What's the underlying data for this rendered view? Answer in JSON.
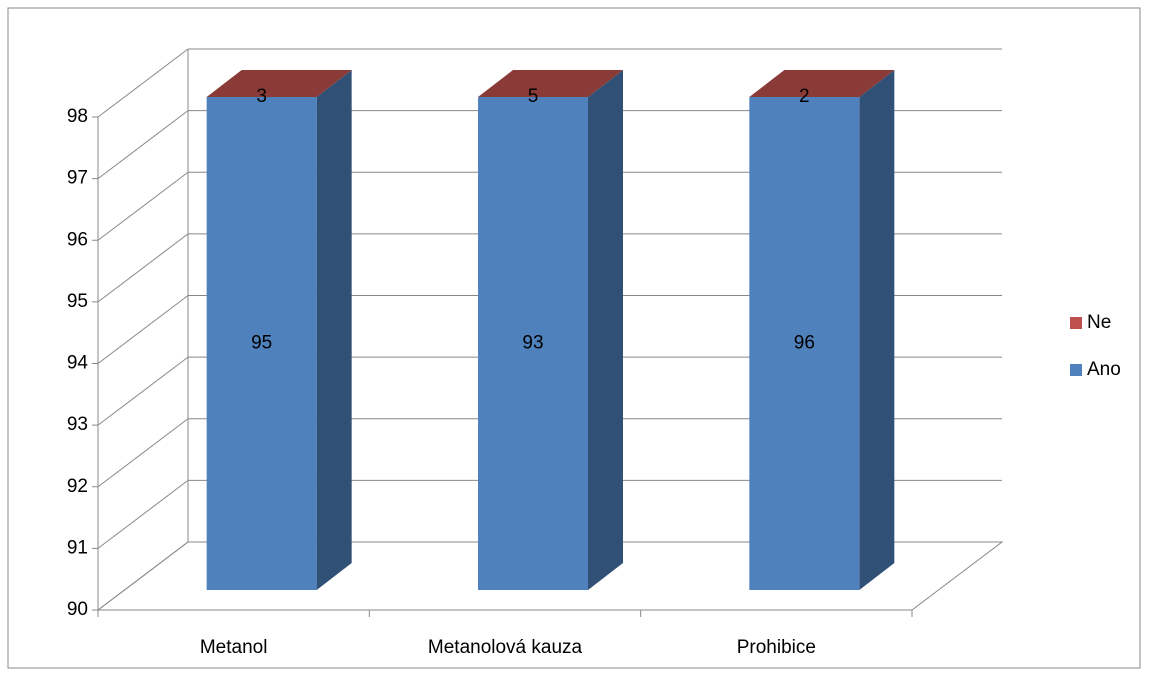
{
  "chart_data": {
    "type": "bar3d_stacked",
    "categories": [
      "Metanol",
      "Metanolová kauza",
      "Prohibice"
    ],
    "series": [
      {
        "name": "Ano",
        "color": "#4f81bd",
        "values": [
          95,
          93,
          96
        ]
      },
      {
        "name": "Ne",
        "color": "#c0504d",
        "values": [
          3,
          5,
          2
        ]
      }
    ],
    "ylim": [
      90,
      98
    ],
    "yticks": [
      90,
      91,
      92,
      93,
      94,
      95,
      96,
      97,
      98
    ],
    "grid": true,
    "legend": "right"
  }
}
